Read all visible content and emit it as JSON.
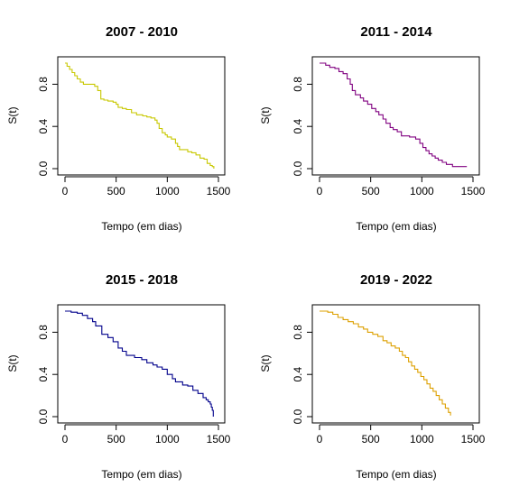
{
  "chart_data": [
    {
      "type": "line",
      "step": true,
      "title": "2007 - 2010",
      "xlabel": "Tempo (em dias)",
      "ylabel": "S(t)",
      "xlim": [
        0,
        1500
      ],
      "ylim": [
        0,
        1
      ],
      "xticks": [
        "0",
        "500",
        "1000",
        "1500"
      ],
      "yticks": [
        "0.0",
        "0.4",
        "0.8"
      ],
      "color": "#c8c800",
      "series": [
        {
          "x": [
            0,
            20,
            45,
            70,
            95,
            120,
            150,
            180,
            290,
            320,
            350,
            380,
            420,
            470,
            500,
            520,
            560,
            600,
            650,
            700,
            760,
            800,
            840,
            880,
            900,
            920,
            950,
            980,
            1000,
            1040,
            1080,
            1100,
            1120,
            1200,
            1240,
            1280,
            1320,
            1360,
            1390,
            1420,
            1440,
            1455
          ],
          "y": [
            1.0,
            0.97,
            0.94,
            0.91,
            0.88,
            0.85,
            0.82,
            0.8,
            0.78,
            0.74,
            0.66,
            0.65,
            0.64,
            0.63,
            0.61,
            0.58,
            0.57,
            0.56,
            0.53,
            0.51,
            0.5,
            0.49,
            0.48,
            0.46,
            0.43,
            0.38,
            0.34,
            0.32,
            0.3,
            0.28,
            0.24,
            0.21,
            0.18,
            0.16,
            0.15,
            0.13,
            0.1,
            0.09,
            0.05,
            0.03,
            0.02,
            0.0
          ]
        }
      ]
    },
    {
      "type": "line",
      "step": true,
      "title": "2011 - 2014",
      "xlabel": "Tempo (em dias)",
      "ylabel": "S(t)",
      "xlim": [
        0,
        1500
      ],
      "ylim": [
        0,
        1
      ],
      "xticks": [
        "0",
        "500",
        "1000",
        "1500"
      ],
      "yticks": [
        "0.0",
        "0.4",
        "0.8"
      ],
      "color": "#800080",
      "series": [
        {
          "x": [
            0,
            60,
            100,
            150,
            190,
            230,
            270,
            300,
            320,
            350,
            400,
            430,
            470,
            510,
            550,
            580,
            620,
            650,
            690,
            720,
            760,
            800,
            880,
            940,
            980,
            1010,
            1040,
            1070,
            1100,
            1130,
            1160,
            1200,
            1240,
            1300,
            1440
          ],
          "y": [
            1.0,
            0.98,
            0.96,
            0.95,
            0.92,
            0.9,
            0.85,
            0.8,
            0.74,
            0.7,
            0.67,
            0.64,
            0.61,
            0.57,
            0.54,
            0.51,
            0.47,
            0.43,
            0.39,
            0.37,
            0.35,
            0.31,
            0.3,
            0.28,
            0.24,
            0.2,
            0.17,
            0.14,
            0.12,
            0.1,
            0.08,
            0.06,
            0.04,
            0.02,
            0.02
          ]
        }
      ]
    },
    {
      "type": "line",
      "step": true,
      "title": "2015 - 2018",
      "xlabel": "Tempo (em dias)",
      "ylabel": "S(t)",
      "xlim": [
        0,
        1500
      ],
      "ylim": [
        0,
        1
      ],
      "xticks": [
        "0",
        "500",
        "1000",
        "1500"
      ],
      "yticks": [
        "0.0",
        "0.4",
        "0.8"
      ],
      "color": "#00008b",
      "series": [
        {
          "x": [
            0,
            60,
            120,
            170,
            220,
            270,
            300,
            360,
            420,
            470,
            520,
            560,
            600,
            680,
            750,
            800,
            860,
            900,
            950,
            1000,
            1050,
            1080,
            1150,
            1200,
            1250,
            1300,
            1350,
            1380,
            1400,
            1420,
            1430,
            1440,
            1450
          ],
          "y": [
            1.0,
            0.99,
            0.98,
            0.96,
            0.93,
            0.9,
            0.86,
            0.78,
            0.75,
            0.71,
            0.65,
            0.62,
            0.58,
            0.56,
            0.54,
            0.51,
            0.49,
            0.47,
            0.45,
            0.4,
            0.36,
            0.33,
            0.3,
            0.29,
            0.25,
            0.22,
            0.18,
            0.16,
            0.14,
            0.12,
            0.09,
            0.06,
            0.0
          ]
        }
      ]
    },
    {
      "type": "line",
      "step": true,
      "title": "2019 - 2022",
      "xlabel": "Tempo (em dias)",
      "ylabel": "S(t)",
      "xlim": [
        0,
        1500
      ],
      "ylim": [
        0,
        1
      ],
      "xticks": [
        "0",
        "500",
        "1000",
        "1500"
      ],
      "yticks": [
        "0.0",
        "0.4",
        "0.8"
      ],
      "color": "#dda000",
      "series": [
        {
          "x": [
            0,
            80,
            130,
            180,
            230,
            280,
            330,
            380,
            430,
            470,
            520,
            570,
            620,
            660,
            700,
            740,
            780,
            810,
            840,
            870,
            900,
            930,
            960,
            990,
            1020,
            1050,
            1080,
            1110,
            1140,
            1170,
            1200,
            1230,
            1260,
            1280
          ],
          "y": [
            1.0,
            0.99,
            0.97,
            0.94,
            0.92,
            0.9,
            0.88,
            0.85,
            0.83,
            0.8,
            0.78,
            0.76,
            0.72,
            0.7,
            0.67,
            0.65,
            0.62,
            0.58,
            0.56,
            0.52,
            0.48,
            0.45,
            0.42,
            0.38,
            0.35,
            0.31,
            0.27,
            0.24,
            0.2,
            0.16,
            0.12,
            0.08,
            0.04,
            0.01
          ]
        }
      ]
    }
  ]
}
